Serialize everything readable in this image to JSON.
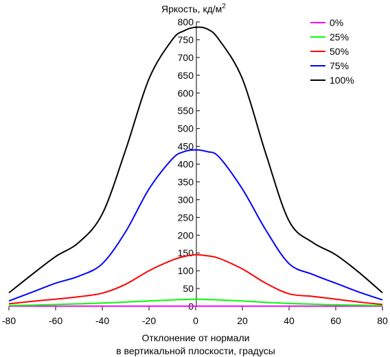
{
  "chart_data": {
    "type": "line",
    "ylabel": "Яркость, кд/м",
    "ylabel_superscript": "2",
    "xlabel_lines": [
      "Отклонение от нормали",
      "в вертикальной плоскости, градусы"
    ],
    "xlim": [
      -80,
      80
    ],
    "ylim": [
      0,
      800
    ],
    "x_ticks": [
      -80,
      -60,
      -40,
      -20,
      0,
      20,
      40,
      60,
      80
    ],
    "x_tick_labels": [
      "-80",
      "-60",
      "-40",
      "-20",
      "0",
      "20",
      "40",
      "60",
      "80"
    ],
    "y_ticks": [
      0,
      50,
      100,
      150,
      200,
      250,
      300,
      350,
      400,
      450,
      500,
      550,
      600,
      650,
      700,
      750,
      800
    ],
    "y_tick_labels": [
      "0",
      "50",
      "100",
      "150",
      "200",
      "250",
      "300",
      "350",
      "400",
      "450",
      "500",
      "550",
      "600",
      "650",
      "700",
      "750",
      "800"
    ],
    "legend_position": "top-right",
    "x": [
      -80,
      -70,
      -60,
      -50,
      -40,
      -30,
      -20,
      -10,
      -5,
      0,
      5,
      10,
      20,
      30,
      40,
      50,
      60,
      70,
      80
    ],
    "series": [
      {
        "name": "0%",
        "color": "#ff00ff",
        "values": [
          0.3,
          0.3,
          0.3,
          0.3,
          0.3,
          0.3,
          0.3,
          0.3,
          0.3,
          0.3,
          0.3,
          0.3,
          0.3,
          0.3,
          0.3,
          0.3,
          0.3,
          0.3,
          0.3
        ]
      },
      {
        "name": "25%",
        "color": "#00ff00",
        "values": [
          2,
          3,
          5,
          7,
          9,
          12,
          15,
          18,
          19,
          20,
          19,
          18,
          15,
          11,
          8,
          6,
          4,
          3,
          2
        ]
      },
      {
        "name": "50%",
        "color": "#ff0000",
        "values": [
          7,
          14,
          20,
          27,
          37,
          62,
          100,
          130,
          140,
          145,
          142,
          135,
          105,
          65,
          35,
          28,
          20,
          12,
          5
        ]
      },
      {
        "name": "75%",
        "color": "#0000ff",
        "values": [
          15,
          40,
          65,
          85,
          120,
          210,
          330,
          415,
          435,
          440,
          435,
          420,
          330,
          215,
          120,
          90,
          65,
          40,
          18
        ]
      },
      {
        "name": "100%",
        "color": "#000000",
        "values": [
          38,
          90,
          140,
          180,
          260,
          440,
          640,
          750,
          775,
          785,
          780,
          750,
          640,
          430,
          240,
          180,
          145,
          95,
          38
        ]
      }
    ]
  }
}
